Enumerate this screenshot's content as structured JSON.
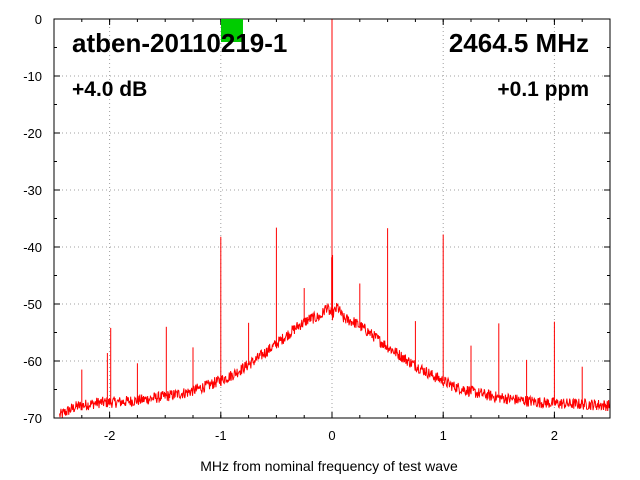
{
  "chart_data": {
    "type": "line",
    "title": "",
    "xlabel": "MHz from nominal frequency of test wave",
    "ylabel": "",
    "xlim": [
      -2.5,
      2.5
    ],
    "ylim": [
      -70,
      0
    ],
    "x_ticks": [
      -2,
      -1,
      0,
      1,
      2
    ],
    "x_tick_labels": [
      "-2",
      "-1",
      "0",
      "1",
      "2"
    ],
    "y_ticks": [
      0,
      -10,
      -20,
      -30,
      -40,
      -50,
      -60,
      -70
    ],
    "y_tick_labels": [
      "0",
      "-10",
      "-20",
      "-30",
      "-40",
      "-50",
      "-60",
      "-70"
    ],
    "grid": true,
    "series_color": "#ff0000",
    "annotations": {
      "device": "atben-20110219-1",
      "frequency": "2464.5 MHz",
      "gain": "+4.0 dB",
      "offset": "+0.1 ppm"
    },
    "marker_color": "#00cc00",
    "noise_floor": {
      "x": [
        -2.45,
        -2.3,
        -2.1,
        -1.9,
        -1.7,
        -1.5,
        -1.3,
        -1.1,
        -0.9,
        -0.7,
        -0.5,
        -0.3,
        -0.2,
        -0.1,
        -0.05,
        0.0,
        0.05,
        0.1,
        0.2,
        0.3,
        0.5,
        0.7,
        0.9,
        1.1,
        1.3,
        1.5,
        1.7,
        1.9,
        2.1,
        2.3,
        2.5
      ],
      "y": [
        -69.5,
        -68.0,
        -67.3,
        -67.2,
        -66.8,
        -66.2,
        -65.5,
        -64.2,
        -62.5,
        -60.0,
        -57.0,
        -53.8,
        -52.6,
        -52.2,
        -50.5,
        -52.0,
        -50.5,
        -52.5,
        -53.2,
        -54.5,
        -57.5,
        -60.2,
        -62.5,
        -64.5,
        -65.6,
        -66.4,
        -66.9,
        -67.3,
        -67.5,
        -67.6,
        -67.8
      ]
    },
    "spurs": [
      {
        "x": 0.0,
        "y": 0.0
      },
      {
        "x": -2.25,
        "y": -61.5
      },
      {
        "x": -2.02,
        "y": -58.6
      },
      {
        "x": -1.99,
        "y": -54.2
      },
      {
        "x": -1.75,
        "y": -60.4
      },
      {
        "x": -1.49,
        "y": -54.0
      },
      {
        "x": -1.25,
        "y": -57.6
      },
      {
        "x": -1.0,
        "y": -38.2
      },
      {
        "x": -0.75,
        "y": -53.3
      },
      {
        "x": -0.5,
        "y": -36.6
      },
      {
        "x": -0.25,
        "y": -47.2
      },
      {
        "x": 0.25,
        "y": -46.4
      },
      {
        "x": 0.5,
        "y": -36.7
      },
      {
        "x": 0.75,
        "y": -53.0
      },
      {
        "x": 1.0,
        "y": -37.8
      },
      {
        "x": 1.25,
        "y": -57.3
      },
      {
        "x": 1.5,
        "y": -53.4
      },
      {
        "x": 1.75,
        "y": -59.8
      },
      {
        "x": 2.0,
        "y": -53.1
      },
      {
        "x": 2.25,
        "y": -61.0
      },
      {
        "x": 0.005,
        "y": -41.4
      },
      {
        "x": -0.003,
        "y": -41.8
      }
    ]
  }
}
